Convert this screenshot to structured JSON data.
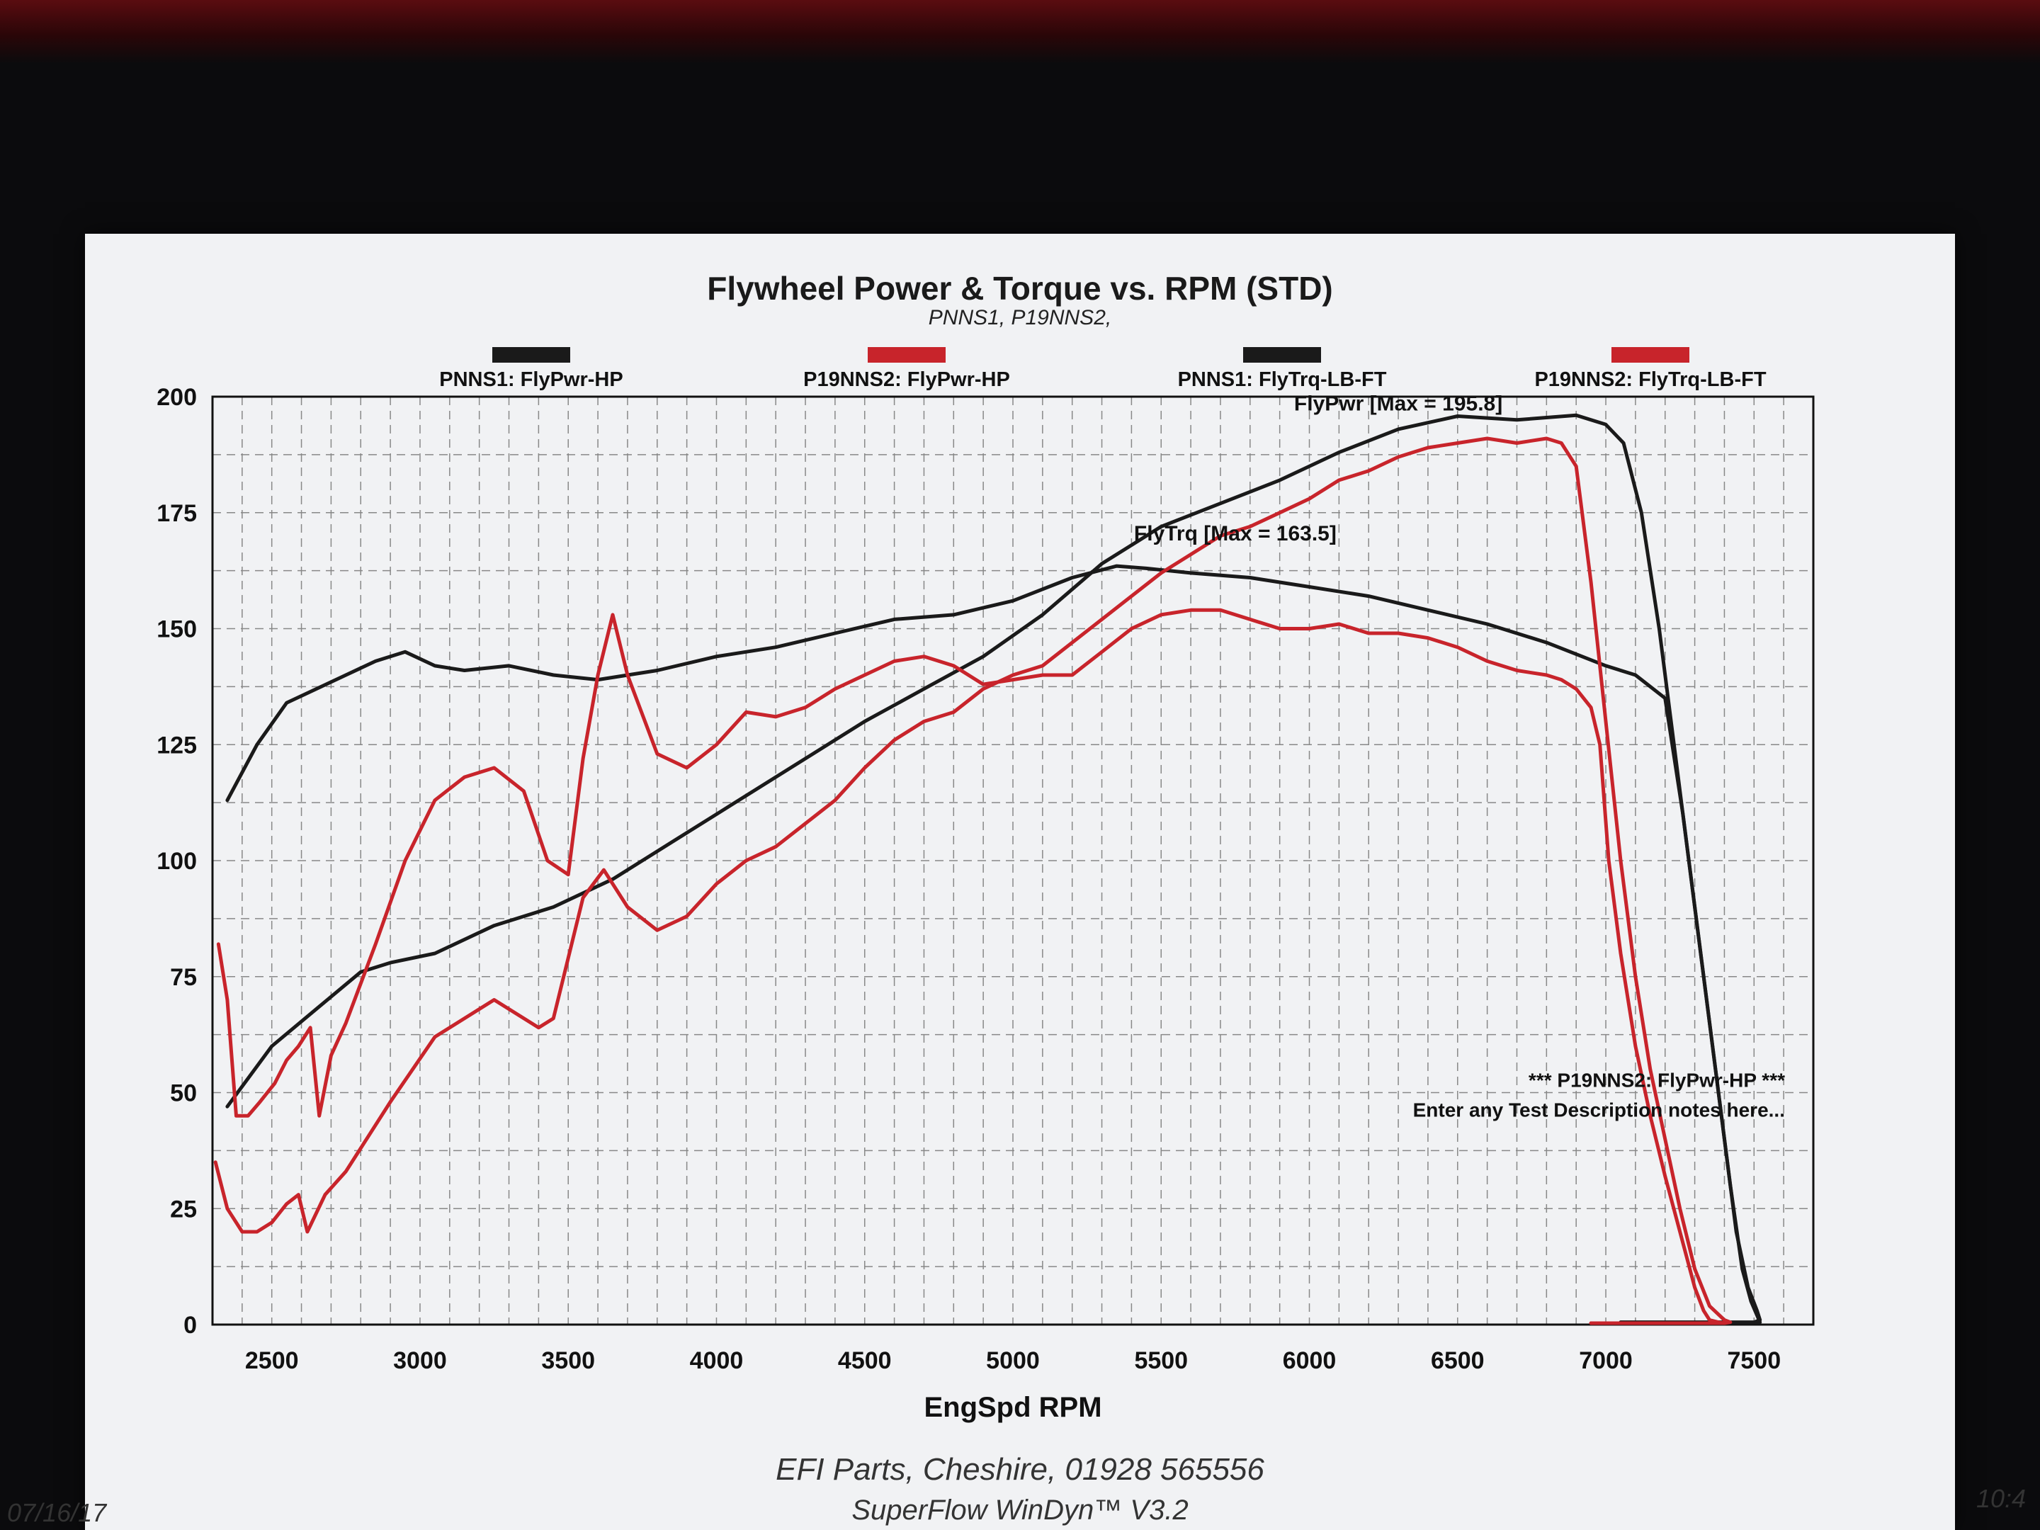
{
  "chart_data": {
    "type": "line",
    "title": "Flywheel Power & Torque vs. RPM (STD)",
    "subtitle": "PNNS1, P19NNS2,",
    "xlabel": "EngSpd RPM",
    "ylabel": "",
    "xlim": [
      2300,
      7700
    ],
    "ylim": [
      0,
      200
    ],
    "xticks": [
      "2500",
      "3000",
      "3500",
      "4000",
      "4500",
      "5000",
      "5500",
      "6000",
      "6500",
      "7000",
      "7500"
    ],
    "yticks": [
      "0",
      "25",
      "50",
      "75",
      "100",
      "125",
      "150",
      "175",
      "200"
    ],
    "grid": true,
    "legend_position": "top",
    "legend": [
      {
        "label": "PNNS1: FlyPwr-HP",
        "color": "#1a1a1a"
      },
      {
        "label": "P19NNS2: FlyPwr-HP",
        "color": "#c8242b"
      },
      {
        "label": "PNNS1: FlyTrq-LB-FT",
        "color": "#1a1a1a"
      },
      {
        "label": "P19NNS2: FlyTrq-LB-FT",
        "color": "#c8242b"
      }
    ],
    "series": [
      {
        "name": "PNNS1: FlyPwr-HP",
        "color": "#1a1a1a",
        "x": [
          2350,
          2500,
          2650,
          2800,
          2900,
          3050,
          3250,
          3450,
          3650,
          3850,
          4050,
          4250,
          4500,
          4700,
          4900,
          5100,
          5300,
          5500,
          5700,
          5900,
          6100,
          6300,
          6500,
          6700,
          6900,
          7000,
          7060,
          7120,
          7180,
          7240,
          7300,
          7360,
          7420,
          7460,
          7490,
          7510,
          7520,
          7500,
          7450,
          7300,
          7050
        ],
        "y": [
          47,
          60,
          68,
          76,
          78,
          80,
          86,
          90,
          96,
          104,
          112,
          120,
          130,
          137,
          144,
          153,
          164,
          172,
          177,
          182,
          188,
          193,
          195.8,
          195,
          196,
          194,
          190,
          175,
          150,
          120,
          90,
          60,
          30,
          12,
          5,
          2,
          0.5,
          0.5,
          0.5,
          0.5,
          0.5
        ]
      },
      {
        "name": "PNNS1: FlyTrq-LB-FT",
        "color": "#1a1a1a",
        "x": [
          2350,
          2450,
          2550,
          2650,
          2750,
          2850,
          2950,
          3050,
          3150,
          3300,
          3450,
          3600,
          3800,
          4000,
          4200,
          4400,
          4600,
          4800,
          5000,
          5200,
          5350,
          5450,
          5600,
          5800,
          6000,
          6200,
          6400,
          6600,
          6800,
          7000,
          7100,
          7200,
          7260,
          7320,
          7380,
          7440,
          7480,
          7510,
          7520,
          7500,
          7450,
          7300,
          7050
        ],
        "y": [
          113,
          125,
          134,
          137,
          140,
          143,
          145,
          142,
          141,
          142,
          140,
          139,
          141,
          144,
          146,
          149,
          152,
          153,
          156,
          161,
          163.5,
          163,
          162,
          161,
          159,
          157,
          154,
          151,
          147,
          142,
          140,
          135,
          110,
          80,
          50,
          20,
          8,
          3,
          1,
          0.5,
          0.5,
          0.5,
          0.5
        ]
      },
      {
        "name": "P19NNS2: FlyPwr-HP",
        "color": "#c8242b",
        "x": [
          2310,
          2350,
          2400,
          2450,
          2500,
          2550,
          2590,
          2620,
          2680,
          2750,
          2900,
          3050,
          3250,
          3400,
          3450,
          3550,
          3620,
          3700,
          3800,
          3900,
          4000,
          4100,
          4200,
          4300,
          4400,
          4500,
          4600,
          4700,
          4800,
          4900,
          5000,
          5100,
          5200,
          5300,
          5400,
          5500,
          5600,
          5700,
          5800,
          5900,
          6000,
          6100,
          6200,
          6300,
          6400,
          6500,
          6600,
          6700,
          6800,
          6850,
          6900,
          6950,
          7000,
          7050,
          7100,
          7150,
          7200,
          7250,
          7300,
          7350,
          7400,
          7420,
          7400,
          7350,
          7200,
          6950
        ],
        "y": [
          35,
          25,
          20,
          20,
          22,
          26,
          28,
          20,
          28,
          33,
          48,
          62,
          70,
          64,
          66,
          92,
          98,
          90,
          85,
          88,
          95,
          100,
          103,
          108,
          113,
          120,
          126,
          130,
          132,
          137,
          140,
          142,
          147,
          152,
          157,
          162,
          166,
          170,
          172,
          175,
          178,
          182,
          184,
          187,
          189,
          190,
          191,
          190,
          191,
          190,
          185,
          160,
          130,
          100,
          75,
          55,
          40,
          25,
          12,
          4,
          1,
          0.5,
          0.3,
          0.3,
          0.3,
          0.3
        ]
      },
      {
        "name": "P19NNS2: FlyTrq-LB-FT",
        "color": "#c8242b",
        "x": [
          2320,
          2350,
          2380,
          2420,
          2460,
          2510,
          2550,
          2590,
          2630,
          2660,
          2700,
          2750,
          2850,
          2950,
          3050,
          3150,
          3250,
          3350,
          3430,
          3500,
          3550,
          3600,
          3650,
          3700,
          3800,
          3900,
          4000,
          4100,
          4200,
          4300,
          4400,
          4500,
          4600,
          4700,
          4800,
          4900,
          5000,
          5100,
          5200,
          5300,
          5400,
          5500,
          5600,
          5700,
          5800,
          5900,
          6000,
          6100,
          6200,
          6300,
          6400,
          6500,
          6600,
          6700,
          6800,
          6850,
          6900,
          6950,
          6980,
          7010,
          7050,
          7100,
          7150,
          7200,
          7250,
          7300,
          7330,
          7350,
          7380,
          7400,
          7380,
          7330,
          7200,
          6950
        ],
        "y": [
          82,
          70,
          45,
          45,
          48,
          52,
          57,
          60,
          64,
          45,
          58,
          65,
          82,
          100,
          113,
          118,
          120,
          115,
          100,
          97,
          122,
          140,
          153,
          140,
          123,
          120,
          125,
          132,
          131,
          133,
          137,
          140,
          143,
          144,
          142,
          138,
          139,
          140,
          140,
          145,
          150,
          153,
          154,
          154,
          152,
          150,
          150,
          151,
          149,
          149,
          148,
          146,
          143,
          141,
          140,
          139,
          137,
          133,
          125,
          100,
          80,
          60,
          45,
          32,
          20,
          8,
          3,
          1,
          0.5,
          0.3,
          0.3,
          0.3,
          0.3,
          0.3
        ]
      }
    ],
    "annotations": [
      {
        "text": "FlyPwr [Max = 195.8]",
        "x": 6300,
        "y": 197
      },
      {
        "text": "FlyTrq [Max = 163.5]",
        "x": 5750,
        "y": 169
      }
    ],
    "note_lines": [
      "*** P19NNS2: FlyPwr-HP ***",
      "Enter any Test Description notes here..."
    ]
  },
  "footer": {
    "line1": "EFI Parts, Cheshire, 01928 565556",
    "line2": "SuperFlow WinDyn™ V3.2",
    "date": "07/16/17",
    "time": "10:4"
  }
}
